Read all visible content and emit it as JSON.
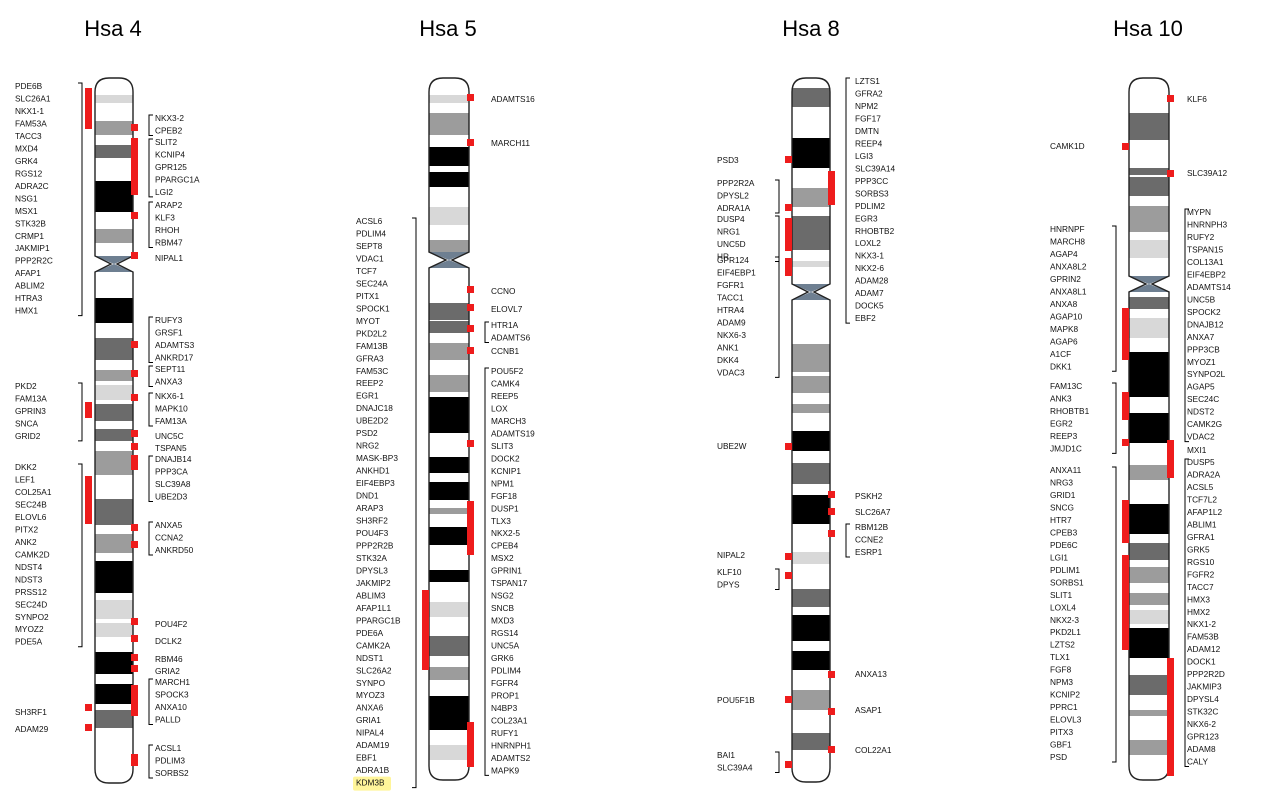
{
  "colors": {
    "band_dark": "#000000",
    "band_mid": "#6b6b6b",
    "band_light": "#9c9c9c",
    "band_pale": "#d8d8d8",
    "centromere": "#6e7f91",
    "marker": "#ee1c1c",
    "bracket": "#000000",
    "highlight": "#fff59a"
  },
  "chromosomes": [
    {
      "name": "Hsa 4",
      "left_groups": [
        [
          "PDE6B",
          "SLC26A1",
          "NKX1-1",
          "FAM53A",
          "TACC3",
          "MXD4",
          "GRK4",
          "RGS12",
          "ADRA2C",
          "NSG1",
          "MSX1",
          "STK32B",
          "CRMP1",
          "JAKMIP1",
          "PPP2R2C",
          "AFAP1",
          "ABLIM2",
          "HTRA3",
          "HMX1"
        ],
        [
          "PKD2",
          "FAM13A",
          "GPRIN3",
          "SNCA",
          "GRID2"
        ],
        [
          "DKK2",
          "LEF1",
          "COL25A1",
          "SEC24B",
          "ELOVL6",
          "PITX2",
          "ANK2",
          "CAMK2D",
          "NDST4",
          "NDST3",
          "PRSS12",
          "SEC24D",
          "SYNPO2",
          "MYOZ2",
          "PDE5A"
        ],
        [
          "SH3RF1"
        ],
        [
          "ADAM29"
        ]
      ],
      "right_groups": [
        [
          "NKX3-2",
          "CPEB2"
        ],
        [
          "SLIT2",
          "KCNIP4",
          "GPR125",
          "PPARGC1A",
          "LGI2"
        ],
        [
          "ARAP2",
          "KLF3",
          "RHOH",
          "RBM47"
        ],
        [
          "NIPAL1"
        ],
        [
          "RUFY3",
          "GRSF1",
          "ADAMTS3",
          "ANKRD17"
        ],
        [
          "SEPT11",
          "ANXA3"
        ],
        [
          "NKX6-1",
          "MAPK10",
          "FAM13A"
        ],
        [
          "UNC5C"
        ],
        [
          "TSPAN5"
        ],
        [
          "DNAJB14",
          "PPP3CA",
          "SLC39A8",
          "UBE2D3"
        ],
        [
          "ANXA5",
          "CCNA2",
          "ANKRD50"
        ],
        [
          "POU4F2"
        ],
        [
          "DCLK2"
        ],
        [
          "RBM46"
        ],
        [
          "GRIA2"
        ],
        [
          "MARCH1",
          "SPOCK3",
          "ANXA10",
          "PALLD"
        ],
        [
          "ACSL1",
          "PDLIM3",
          "SORBS2"
        ]
      ]
    },
    {
      "name": "Hsa 5",
      "left_groups": [
        [
          "ACSL6",
          "PDLIM4",
          "SEPT8",
          "VDAC1",
          "TCF7",
          "SEC24A",
          "PITX1",
          "SPOCK1",
          "MYOT",
          "PKD2L2",
          "FAM13B",
          "GFRA3",
          "FAM53C",
          "REEP2",
          "EGR1",
          "DNAJC18",
          "UBE2D2",
          "PSD2",
          "NRG2",
          "MASK-BP3",
          "ANKHD1",
          "EIF4EBP3",
          "DND1",
          "ARAP3",
          "SH3RF2",
          "POU4F3",
          "PPP2R2B",
          "STK32A",
          "DPYSL3",
          "JAKMIP2",
          "ABLIM3",
          "AFAP1L1",
          "PPARGC1B",
          "PDE6A",
          "CAMK2A",
          "NDST1",
          "SLC26A2",
          "SYNPO",
          "MYOZ3",
          "ANXA6",
          "GRIA1",
          "NIPAL4",
          "ADAM19",
          "EBF1",
          "ADRA1B",
          "KDM3B"
        ]
      ],
      "right_groups": [
        [
          "ADAMTS16"
        ],
        [
          "MARCH11"
        ],
        [
          "CCNO"
        ],
        [
          "ELOVL7"
        ],
        [
          "HTR1A",
          "ADAMTS6"
        ],
        [
          "CCNB1"
        ],
        [
          "POU5F2",
          "CAMK4",
          "REEP5",
          "LOX",
          "MARCH3",
          "ADAMTS19",
          "SLIT3",
          "DOCK2",
          "KCNIP1",
          "NPM1",
          "FGF18",
          "DUSP1",
          "TLX3",
          "NKX2-5",
          "CPEB4",
          "MSX2",
          "GPRIN1",
          "TSPAN17",
          "NSG2",
          "SNCB",
          "MXD3",
          "RGS14",
          "UNC5A",
          "GRK6",
          "PDLIM4",
          "FGFR4",
          "PROP1",
          "N4BP3",
          "COL23A1",
          "RUFY1",
          "HNRNPH1",
          "ADAMTS2",
          "MAPK9"
        ]
      ]
    },
    {
      "name": "Hsa 8",
      "left_groups": [
        [
          "PSD3"
        ],
        [
          "PPP2R2A",
          "DPYSL2",
          "ADRA1A"
        ],
        [
          "DUSP4",
          "NRG1",
          "UNC5D",
          "HR"
        ],
        [
          "GPR124",
          "EIF4EBP1",
          "FGFR1",
          "TACC1",
          "HTRA4",
          "ADAM9",
          "NKX6-3",
          "ANK1",
          "DKK4",
          "VDAC3"
        ],
        [
          "UBE2W"
        ],
        [
          "NIPAL2"
        ],
        [
          "KLF10",
          "DPYS"
        ],
        [
          "POU5F1B"
        ],
        [
          "BAI1",
          "SLC39A4"
        ]
      ],
      "right_groups": [
        [
          "LZTS1",
          "GFRA2",
          "NPM2",
          "FGF17",
          "DMTN",
          "REEP4",
          "LGI3",
          "SLC39A14",
          "PPP3CC",
          "SORBS3",
          "PDLIM2",
          "EGR3",
          "RHOBTB2",
          "LOXL2",
          "NKX3-1",
          "NKX2-6",
          "ADAM28",
          "ADAM7",
          "DOCK5",
          "EBF2"
        ],
        [
          "PSKH2"
        ],
        [
          "SLC26A7"
        ],
        [
          "RBM12B",
          "CCNE2",
          "ESRP1"
        ],
        [
          "ANXA13"
        ],
        [
          "ASAP1"
        ],
        [
          "COL22A1"
        ]
      ]
    },
    {
      "name": "Hsa 10",
      "left_groups": [
        [
          "CAMK1D"
        ],
        [
          "HNRNPF",
          "MARCH8",
          "AGAP4",
          "ANXA8L2",
          "GPRIN2",
          "ANXA8L1",
          "ANXA8",
          "AGAP10",
          "MAPK8",
          "AGAP6",
          "A1CF",
          "DKK1"
        ],
        [
          "FAM13C",
          "ANK3",
          "RHOBTB1",
          "EGR2",
          "REEP3",
          "JMJD1C"
        ],
        [
          "ANXA11",
          "NRG3",
          "GRID1",
          "SNCG",
          "HTR7",
          "CPEB3",
          "PDE6C",
          "LGI1",
          "PDLIM1",
          "SORBS1",
          "SLIT1",
          "LOXL4",
          "NKX2-3",
          "PKD2L1",
          "LZTS2",
          "TLX1",
          "FGF8",
          "NPM3",
          "KCNIP2",
          "PPRC1",
          "ELOVL3",
          "PITX3",
          "GBF1",
          "PSD"
        ]
      ],
      "right_groups": [
        [
          "KLF6"
        ],
        [
          "SLC39A12"
        ],
        [
          "MYPN",
          "HNRNPH3",
          "RUFY2",
          "TSPAN15",
          "COL13A1",
          "EIF4EBP2",
          "ADAMTS14",
          "UNC5B",
          "SPOCK2",
          "DNAJB12",
          "ANXA7",
          "PPP3CB",
          "MYOZ1",
          "SYNPO2L",
          "AGAP5",
          "SEC24C",
          "NDST2",
          "CAMK2G",
          "VDAC2"
        ],
        [
          "MXI1"
        ],
        [
          "DUSP5",
          "ADRA2A",
          "ACSL5",
          "TCF7L2",
          "AFAP1L2",
          "ABLIM1",
          "GFRA1",
          "GRK5",
          "RGS10",
          "FGFR2",
          "TACC7",
          "HMX3",
          "HMX2",
          "NKX1-2",
          "FAM53B",
          "ADAM12",
          "DOCK1",
          "PPP2R2D",
          "JAKMIP3",
          "DPYSL4",
          "STK32C",
          "NKX6-2",
          "GPR123",
          "ADAM8",
          "CALY"
        ]
      ]
    }
  ]
}
